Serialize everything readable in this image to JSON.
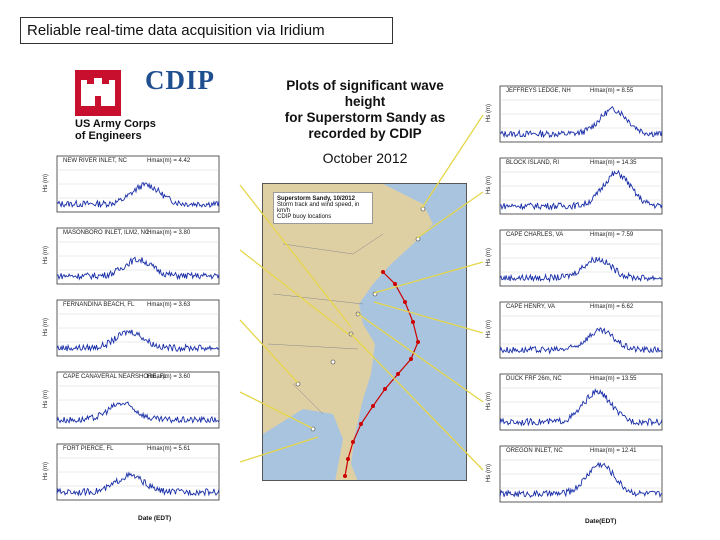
{
  "title": "Reliable real-time data acquisition via Iridium",
  "logos": {
    "usace_line1": "US Army Corps",
    "usace_line2": "of Engineers",
    "cdip": "CDIP"
  },
  "headline": {
    "line1": "Plots of significant wave height",
    "line2": "for Superstorm Sandy as",
    "line3": "recorded by CDIP",
    "month": "October 2012"
  },
  "map": {
    "legend_title": "Superstorm Sandy, 10/2012",
    "legend_item1": "Storm track and wind speed, in km/h",
    "legend_item2": "CDIP buoy locations"
  },
  "left_plots": [
    {
      "station": "NEW RIVER INLET, NC",
      "hmax": "Hmax(m) = 4.42"
    },
    {
      "station": "MASONBORO INLET, ILM2, NC",
      "hmax": "Hmax(m) = 3.80"
    },
    {
      "station": "FERNANDINA BEACH, FL",
      "hmax": "Hmax(m) = 3.63"
    },
    {
      "station": "CAPE CANAVERAL NEARSHORE, FL",
      "hmax": "Hmax(m) = 3.60"
    },
    {
      "station": "FORT PIERCE, FL",
      "hmax": "Hmax(m) = 5.61"
    }
  ],
  "right_plots": [
    {
      "station": "JEFFREYS LEDGE, NH",
      "hmax": "Hmax(m) = 8.55"
    },
    {
      "station": "BLOCK ISLAND, RI",
      "hmax": "Hmax(m) = 14.35"
    },
    {
      "station": "CAPE CHARLES, VA",
      "hmax": "Hmax(m) = 7.59"
    },
    {
      "station": "CAPE HENRY, VA",
      "hmax": "Hmax(m) = 6.62"
    },
    {
      "station": "DUCK FRF 26m, NC",
      "hmax": "Hmax(m) = 13.55"
    },
    {
      "station": "OREGON INLET, NC",
      "hmax": "Hmax(m) = 12.41"
    }
  ],
  "yaxis_label": "Hs (m)",
  "xaxis_label_left": "Date (EDT)",
  "xaxis_label_right": "Date(EDT)"
}
